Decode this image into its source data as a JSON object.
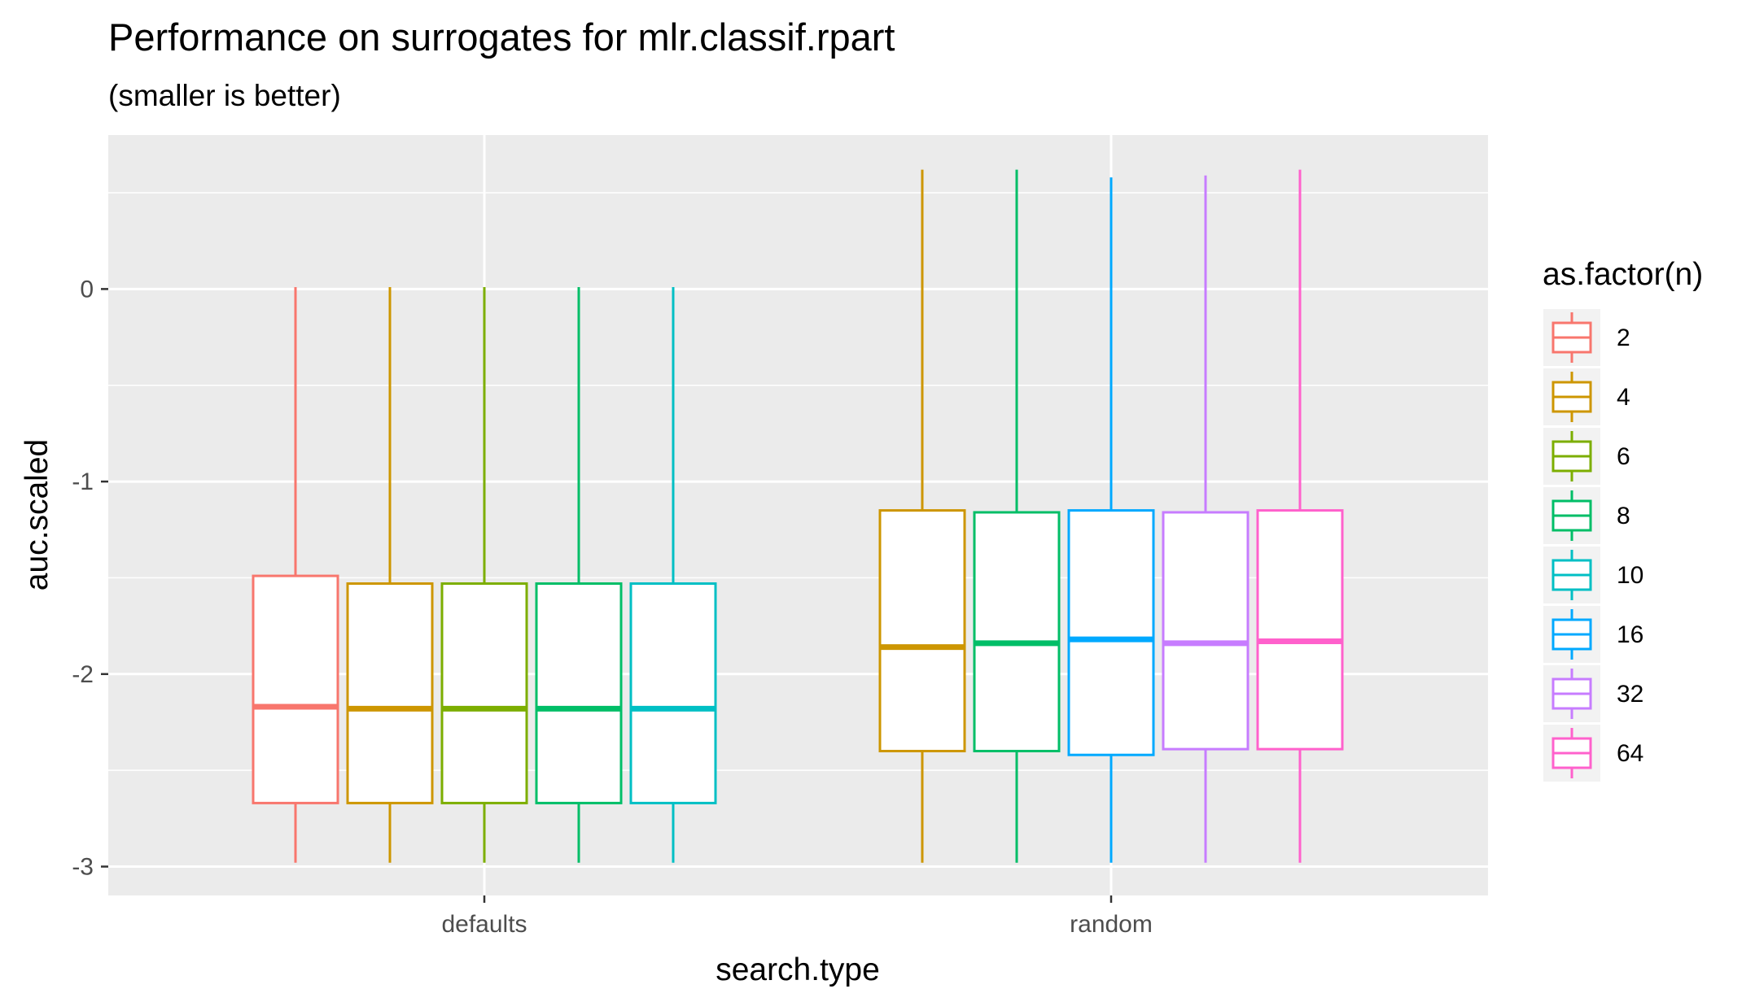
{
  "chart_data": {
    "type": "boxplot",
    "title": "Performance on surrogates for mlr.classif.rpart",
    "subtitle": "(smaller is better)",
    "xlabel": "search.type",
    "ylabel": "auc.scaled",
    "categories": [
      "defaults",
      "random"
    ],
    "ylim": [
      -3.15,
      0.8
    ],
    "yticks": [
      -3,
      -2,
      -1,
      0
    ],
    "ytick_labels": [
      "-3",
      "-2",
      "-1",
      "0"
    ],
    "grid": true,
    "legend": {
      "title": "as.factor(n)",
      "placement": "right",
      "entries": [
        {
          "label": "2",
          "color": "#F8766D"
        },
        {
          "label": "4",
          "color": "#CD9600"
        },
        {
          "label": "6",
          "color": "#7CAE00"
        },
        {
          "label": "8",
          "color": "#00BE67"
        },
        {
          "label": "10",
          "color": "#00BFC4"
        },
        {
          "label": "16",
          "color": "#00A9FF"
        },
        {
          "label": "32",
          "color": "#C77CFF"
        },
        {
          "label": "64",
          "color": "#FF61CC"
        }
      ]
    },
    "boxes": [
      {
        "category": "defaults",
        "group": "2",
        "color": "#F8766D",
        "min": -2.98,
        "q1": -2.67,
        "median": -2.17,
        "q3": -1.49,
        "max": 0.01
      },
      {
        "category": "defaults",
        "group": "4",
        "color": "#CD9600",
        "min": -2.98,
        "q1": -2.67,
        "median": -2.18,
        "q3": -1.53,
        "max": 0.01
      },
      {
        "category": "defaults",
        "group": "6",
        "color": "#7CAE00",
        "min": -2.98,
        "q1": -2.67,
        "median": -2.18,
        "q3": -1.53,
        "max": 0.01
      },
      {
        "category": "defaults",
        "group": "8",
        "color": "#00BE67",
        "min": -2.98,
        "q1": -2.67,
        "median": -2.18,
        "q3": -1.53,
        "max": 0.01
      },
      {
        "category": "defaults",
        "group": "10",
        "color": "#00BFC4",
        "min": -2.98,
        "q1": -2.67,
        "median": -2.18,
        "q3": -1.53,
        "max": 0.01
      },
      {
        "category": "random",
        "group": "4",
        "color": "#CD9600",
        "min": -2.98,
        "q1": -2.4,
        "median": -1.86,
        "q3": -1.15,
        "max": 0.62
      },
      {
        "category": "random",
        "group": "8",
        "color": "#00BE67",
        "min": -2.98,
        "q1": -2.4,
        "median": -1.84,
        "q3": -1.16,
        "max": 0.62
      },
      {
        "category": "random",
        "group": "16",
        "color": "#00A9FF",
        "min": -2.98,
        "q1": -2.42,
        "median": -1.82,
        "q3": -1.15,
        "max": 0.58
      },
      {
        "category": "random",
        "group": "32",
        "color": "#C77CFF",
        "min": -2.98,
        "q1": -2.39,
        "median": -1.84,
        "q3": -1.16,
        "max": 0.59
      },
      {
        "category": "random",
        "group": "64",
        "color": "#FF61CC",
        "min": -2.98,
        "q1": -2.39,
        "median": -1.83,
        "q3": -1.15,
        "max": 0.62
      }
    ]
  }
}
